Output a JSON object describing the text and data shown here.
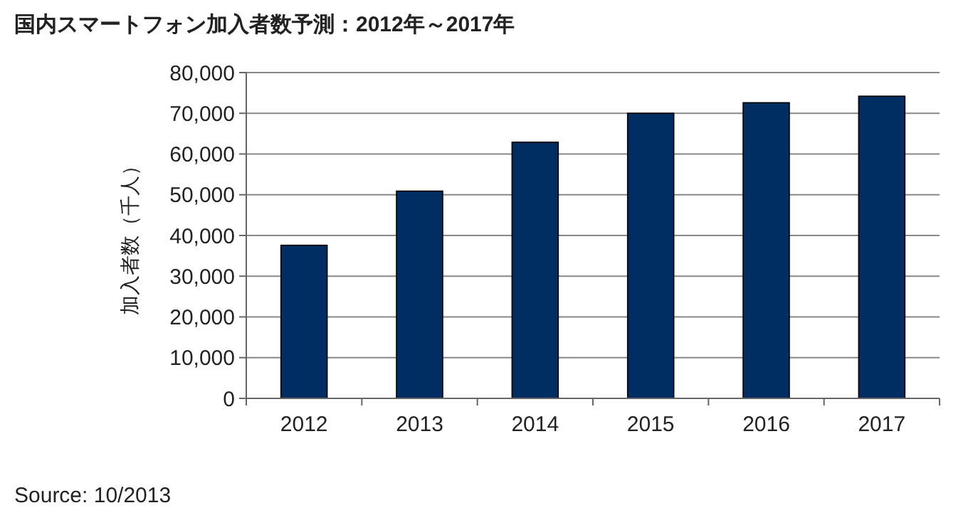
{
  "chart_data": {
    "type": "bar",
    "title": "国内スマートフォン加入者数予測：2012年～2017年",
    "ylabel": "加入者数（千人）",
    "categories": [
      "2012",
      "2013",
      "2014",
      "2015",
      "2016",
      "2017"
    ],
    "values": [
      37600,
      50900,
      62900,
      70000,
      72600,
      74200
    ],
    "color": "#002d62",
    "ylim": [
      0,
      80000
    ],
    "yticks": [
      {
        "value": 0,
        "label": "0"
      },
      {
        "value": 10000,
        "label": "10,000"
      },
      {
        "value": 20000,
        "label": "20,000"
      },
      {
        "value": 30000,
        "label": "30,000"
      },
      {
        "value": 40000,
        "label": "40,000"
      },
      {
        "value": 50000,
        "label": "50,000"
      },
      {
        "value": 60000,
        "label": "60,000"
      },
      {
        "value": 70000,
        "label": "70,000"
      },
      {
        "value": 80000,
        "label": "80,000"
      }
    ],
    "grid": "y",
    "annotations": [
      "Source: 10/2013"
    ]
  }
}
